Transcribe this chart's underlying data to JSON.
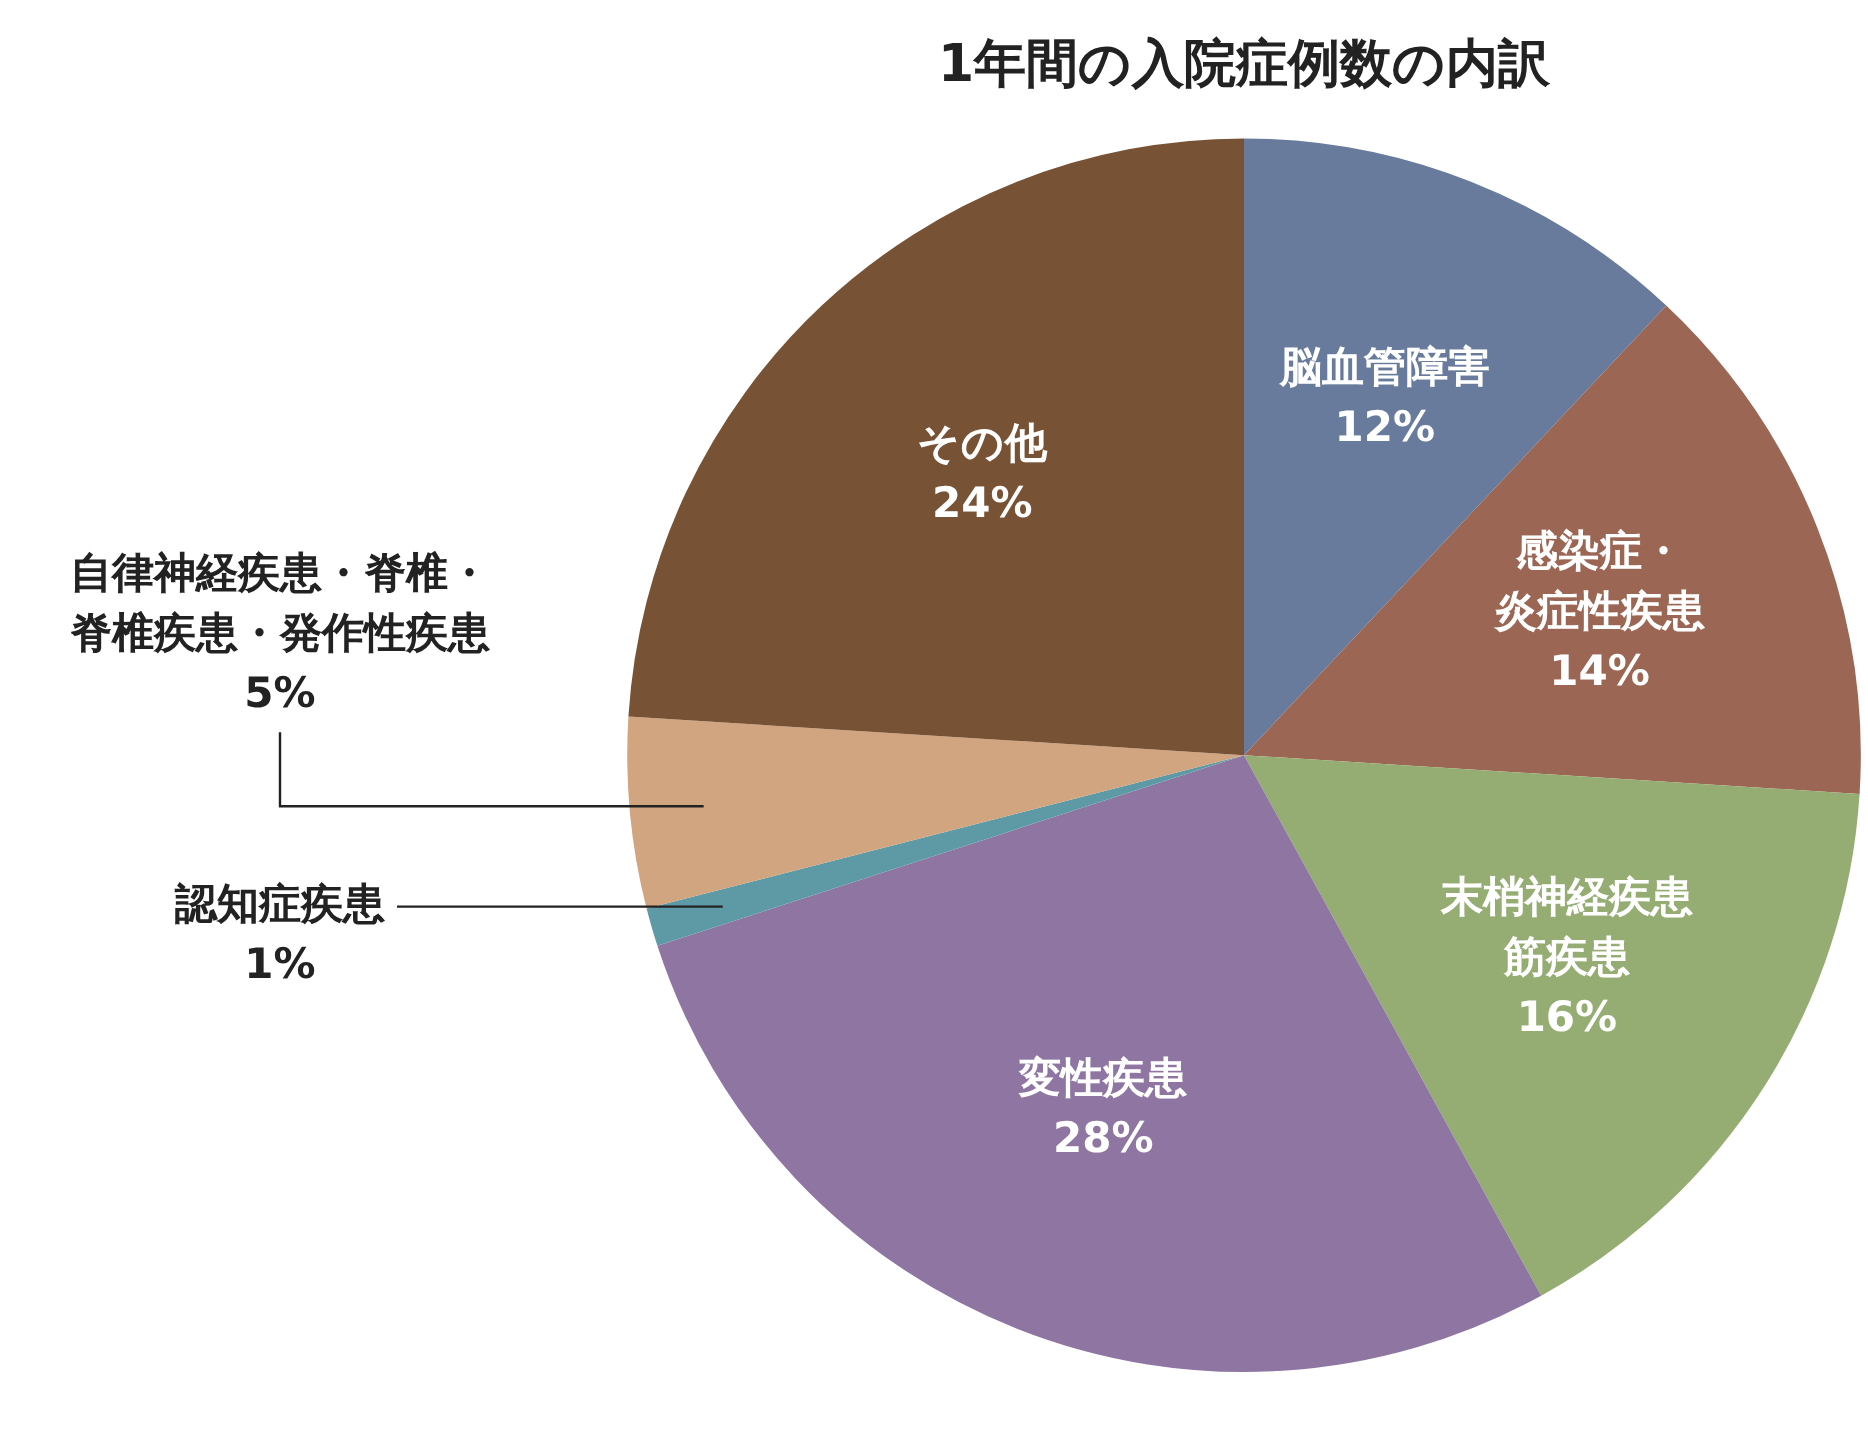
{
  "chart_data": {
    "type": "pie",
    "title": "1年間の入院症例数の内訳",
    "categories": [
      "脳血管障害",
      "感染症・炎症性疾患",
      "末梢神経疾患筋疾患",
      "変性疾患",
      "認知症疾患",
      "自律神経疾患・脊椎・脊椎疾患・発作性疾患",
      "その他"
    ],
    "values": [
      12,
      14,
      16,
      28,
      1,
      5,
      24
    ],
    "value_labels": [
      "12%",
      "14%",
      "16%",
      "28%",
      "1%",
      "5%",
      "24%"
    ],
    "colors": [
      "#687b9c",
      "#9b6654",
      "#95ac72",
      "#8f76a2",
      "#5e9aa6",
      "#d1a57f",
      "#775234"
    ],
    "legend": false
  }
}
